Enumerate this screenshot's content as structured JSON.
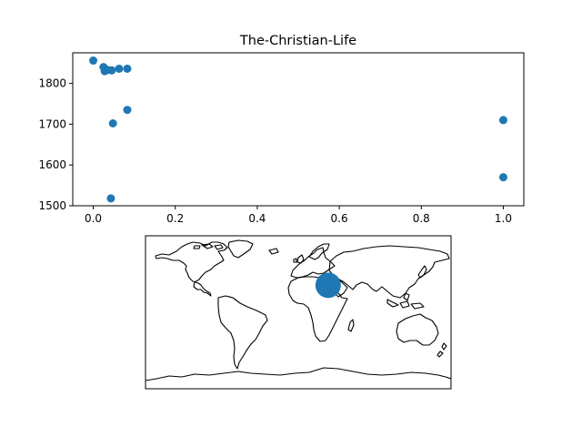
{
  "chart_data": [
    {
      "type": "scatter",
      "title": "The-Christian-Life",
      "xlabel": "",
      "ylabel": "",
      "xlim": [
        -0.05,
        1.05
      ],
      "ylim": [
        1500,
        1875
      ],
      "x_ticks": [
        0.0,
        0.2,
        0.4,
        0.6,
        0.8,
        1.0
      ],
      "x_tick_labels": [
        "0.0",
        "0.2",
        "0.4",
        "0.6",
        "0.8",
        "1.0"
      ],
      "y_ticks": [
        1500,
        1600,
        1700,
        1800
      ],
      "y_tick_labels": [
        "1500",
        "1600",
        "1700",
        "1800"
      ],
      "grid": false,
      "color": "#1f77b4",
      "points": [
        {
          "x": 0.0,
          "y": 1856
        },
        {
          "x": 0.025,
          "y": 1840
        },
        {
          "x": 0.028,
          "y": 1830
        },
        {
          "x": 0.035,
          "y": 1833
        },
        {
          "x": 0.045,
          "y": 1832
        },
        {
          "x": 0.063,
          "y": 1836
        },
        {
          "x": 0.083,
          "y": 1836
        },
        {
          "x": 0.083,
          "y": 1735
        },
        {
          "x": 0.048,
          "y": 1702
        },
        {
          "x": 0.043,
          "y": 1518
        },
        {
          "x": 1.0,
          "y": 1710
        },
        {
          "x": 1.0,
          "y": 1570
        }
      ]
    },
    {
      "type": "map",
      "projection": "plate-carree",
      "lon_range": [
        -180,
        180
      ],
      "lat_range": [
        -90,
        90
      ],
      "color": "#1f77b4",
      "markers": [
        {
          "lon": 35.2,
          "lat": 31.8,
          "size": 1
        }
      ]
    }
  ]
}
